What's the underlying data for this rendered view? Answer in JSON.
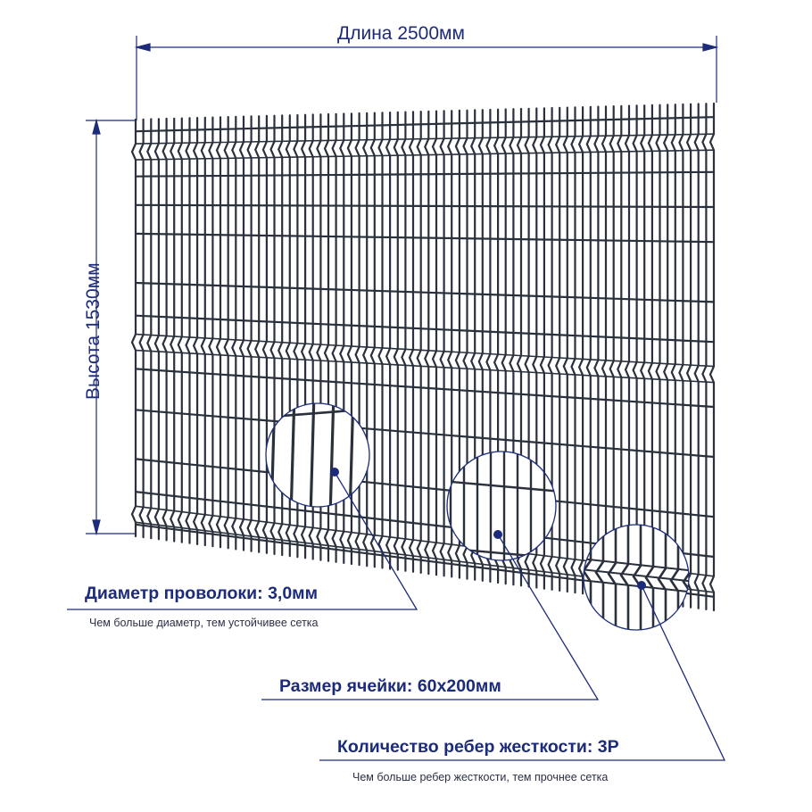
{
  "dimensions": {
    "length_label": "Длина 2500мм",
    "height_label": "Высота 1530мм"
  },
  "callouts": {
    "wire_diameter": {
      "title": "Диаметр проволоки: 3,0мм",
      "note": "Чем больше диаметр, тем устойчивее сетка"
    },
    "cell_size": {
      "title": "Размер ячейки: 60х200мм"
    },
    "stiffening_ribs": {
      "title": "Количество ребер жесткости: 3Р",
      "note": "Чем больше ребер жесткости, тем прочнее сетка"
    }
  },
  "colors": {
    "accent": "#1c2b7a",
    "mesh": "#2a313c",
    "background": "#ffffff"
  }
}
